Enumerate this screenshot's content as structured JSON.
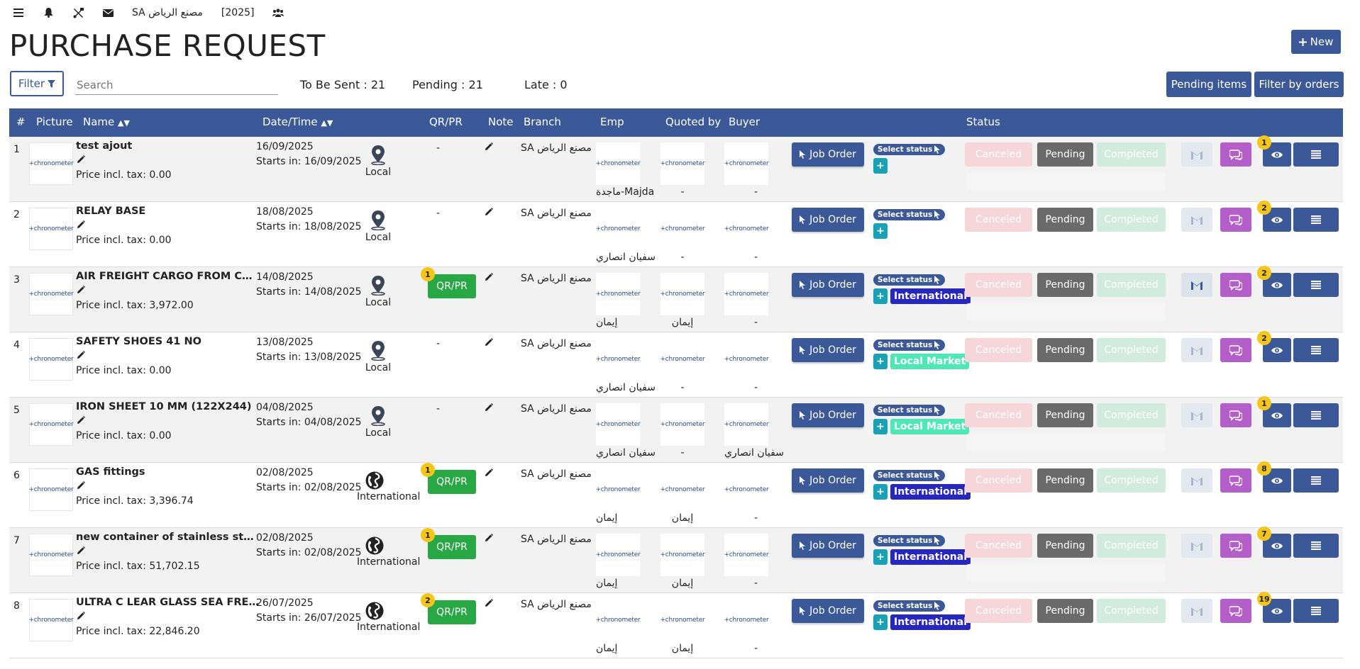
{
  "topbar": {
    "company": "مصنع الرياض SA",
    "year": "[2025]"
  },
  "header": {
    "title": "PURCHASE REQUEST",
    "new_label": "New"
  },
  "filterbar": {
    "filter_label": "Filter",
    "search_placeholder": "Search",
    "to_be_sent": "To Be Sent : 21",
    "pending": "Pending : 21",
    "late": "Late : 0",
    "pending_items_label": "Pending items",
    "filter_orders_label": "Filter by orders"
  },
  "table": {
    "headers": [
      "#",
      "Picture",
      "Name",
      "Date/Time",
      "QR/PR",
      "Note",
      "Branch",
      "Emp",
      "Quoted by",
      "Buyer",
      "Status"
    ],
    "logo_text": "+chronometer",
    "job_label": "Job Order",
    "select_status_label": "Select status",
    "canceled_label": "Canceled",
    "pending_label": "Pending",
    "completed_label": "Completed",
    "rows": [
      {
        "num": "1",
        "name": "test ajout",
        "price": "Price incl. tax: 0.00",
        "date": "16/09/2025",
        "starts": "Starts in: 16/09/2025",
        "loc": "Local",
        "qr": "-",
        "qr_badge": "",
        "branch": "مصنع الرياض SA",
        "emp": "ماجدة-Majda",
        "quoted": "-",
        "buyer": "-",
        "tag": "",
        "eye_badge": "1"
      },
      {
        "num": "2",
        "name": "RELAY BASE",
        "price": "Price incl. tax: 0.00",
        "date": "18/08/2025",
        "starts": "Starts in: 18/08/2025",
        "loc": "Local",
        "qr": "-",
        "qr_badge": "",
        "branch": "مصنع الرياض SA",
        "emp": "سفيان انصاري",
        "quoted": "-",
        "buyer": "-",
        "tag": "",
        "eye_badge": "2"
      },
      {
        "num": "3",
        "name": "AIR FREIGHT CARGO FROM CHINA",
        "price": "Price incl. tax: 3,972.00",
        "date": "14/08/2025",
        "starts": "Starts in: 14/08/2025",
        "loc": "Local",
        "qr": "QR/PR",
        "qr_badge": "1",
        "branch": "مصنع الرياض SA",
        "emp": "إيمان",
        "quoted": "إيمان",
        "buyer": "-",
        "tag": "International",
        "eye_badge": "2"
      },
      {
        "num": "4",
        "name": "SAFETY SHOES 41 NO",
        "price": "Price incl. tax: 0.00",
        "date": "13/08/2025",
        "starts": "Starts in: 13/08/2025",
        "loc": "Local",
        "qr": "-",
        "qr_badge": "",
        "branch": "مصنع الرياض SA",
        "emp": "سفيان انصاري",
        "quoted": "-",
        "buyer": "-",
        "tag": "Local Market",
        "eye_badge": "2"
      },
      {
        "num": "5",
        "name": "IRON SHEET 10 MM (122X244)",
        "price": "Price incl. tax: 0.00",
        "date": "04/08/2025",
        "starts": "Starts in: 04/08/2025",
        "loc": "Local",
        "qr": "-",
        "qr_badge": "",
        "branch": "مصنع الرياض SA",
        "emp": "سفيان انصاري",
        "quoted": "-",
        "buyer": "سفيان انصاري",
        "tag": "Local Market",
        "eye_badge": "1"
      },
      {
        "num": "6",
        "name": "GAS fittings",
        "price": "Price incl. tax: 3,396.74",
        "date": "02/08/2025",
        "starts": "Starts in: 02/08/2025",
        "loc": "International",
        "qr": "QR/PR",
        "qr_badge": "1",
        "branch": "مصنع الرياض SA",
        "emp": "إيمان",
        "quoted": "إيمان",
        "buyer": "-",
        "tag": "International",
        "eye_badge": "8"
      },
      {
        "num": "7",
        "name": "new container of stainless steel c...",
        "price": "Price incl. tax: 51,702.15",
        "date": "02/08/2025",
        "starts": "Starts in: 02/08/2025",
        "loc": "International",
        "qr": "QR/PR",
        "qr_badge": "1",
        "branch": "مصنع الرياض SA",
        "emp": "إيمان",
        "quoted": "إيمان",
        "buyer": "-",
        "tag": "International",
        "eye_badge": "7"
      },
      {
        "num": "8",
        "name": "ULTRA C LEAR GLASS SEA FREIGHT",
        "price": "Price incl. tax: 22,846.20",
        "date": "26/07/2025",
        "starts": "Starts in: 26/07/2025",
        "loc": "International",
        "qr": "QR/PR",
        "qr_badge": "2",
        "branch": "مصنع الرياض SA",
        "emp": "إيمان",
        "quoted": "إيمان",
        "buyer": "-",
        "tag": "International",
        "eye_badge": "19"
      }
    ]
  },
  "colors": {
    "primary": "#3b5998",
    "success": "#28a745",
    "purple": "#b45fc9",
    "badge": "#f5c518",
    "intl_tag": "#2626c0",
    "local_tag": "#4ee8b6"
  }
}
